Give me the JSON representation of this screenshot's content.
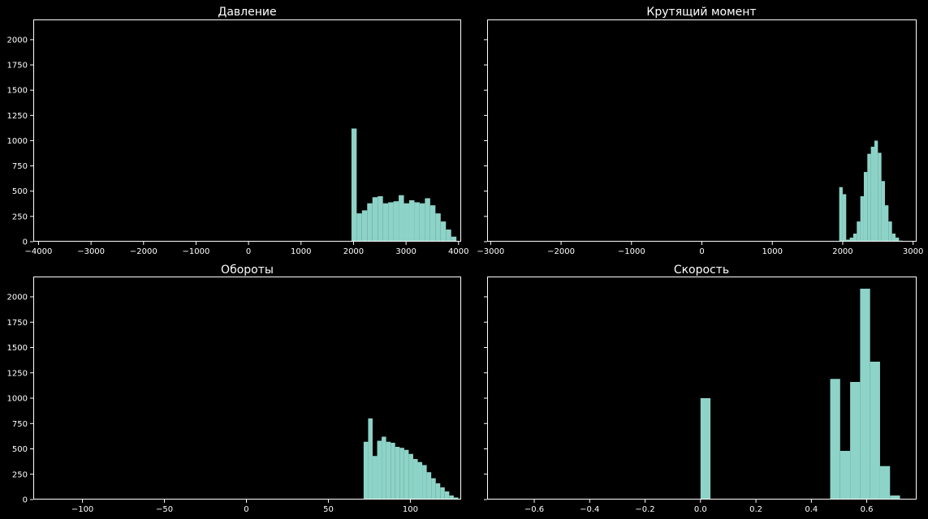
{
  "chart_data": [
    {
      "type": "bar",
      "title": "Давление",
      "xlim": [
        -4100,
        4050
      ],
      "ylim": [
        0,
        2200
      ],
      "x_ticks": [
        -4000,
        -3000,
        -2000,
        -1000,
        0,
        1000,
        2000,
        3000,
        4000
      ],
      "y_ticks": [
        0,
        250,
        500,
        750,
        1000,
        1250,
        1500,
        1750,
        2000
      ],
      "show_y_labels": true,
      "color": "#8dd3c7",
      "bins_x0": 1960,
      "bin_width": 100,
      "values": [
        1120,
        280,
        310,
        380,
        440,
        450,
        380,
        390,
        400,
        460,
        380,
        410,
        390,
        380,
        430,
        360,
        280,
        200,
        120,
        50
      ]
    },
    {
      "type": "bar",
      "title": "Крутящий момент",
      "xlim": [
        -3050,
        3050
      ],
      "ylim": [
        0,
        2200
      ],
      "x_ticks": [
        -3000,
        -2000,
        -1000,
        0,
        1000,
        2000,
        3000
      ],
      "y_ticks": [
        0,
        250,
        500,
        750,
        1000,
        1250,
        1500,
        1750,
        2000
      ],
      "show_y_labels": false,
      "color": "#8dd3c7",
      "bins_x0": 1950,
      "bin_width": 50,
      "values": [
        540,
        470,
        20,
        40,
        80,
        200,
        450,
        690,
        870,
        940,
        1000,
        880,
        600,
        360,
        200,
        80,
        40,
        10
      ]
    },
    {
      "type": "bar",
      "title": "Обороты",
      "xlim": [
        -130,
        131
      ],
      "ylim": [
        0,
        2200
      ],
      "x_ticks": [
        -100,
        -50,
        0,
        50,
        100
      ],
      "y_ticks": [
        0,
        250,
        500,
        750,
        1000,
        1250,
        1500,
        1750,
        2000
      ],
      "show_y_labels": true,
      "color": "#8dd3c7",
      "bins_x0": 71.5,
      "bin_width": 2.75,
      "values": [
        570,
        800,
        430,
        580,
        620,
        570,
        560,
        520,
        510,
        490,
        450,
        400,
        370,
        340,
        270,
        210,
        160,
        120,
        80,
        40,
        20
      ]
    },
    {
      "type": "bar",
      "title": "Скорость",
      "xlim": [
        -0.77,
        0.78
      ],
      "ylim": [
        0,
        2200
      ],
      "x_ticks": [
        -0.6,
        -0.4,
        -0.2,
        0.0,
        0.2,
        0.4,
        0.6
      ],
      "x_tick_labels": [
        "−0.6",
        "−0.4",
        "−0.2",
        "0.0",
        "0.2",
        "0.4",
        "0.6"
      ],
      "y_ticks": [
        0,
        250,
        500,
        750,
        1000,
        1250,
        1500,
        1750,
        2000
      ],
      "show_y_labels": false,
      "color": "#8dd3c7",
      "bins_x0": 0,
      "bin_width": 0.036,
      "values": [
        1000,
        0,
        0,
        0,
        0,
        0,
        0,
        0,
        0,
        0,
        0,
        0,
        0,
        1190,
        480,
        1160,
        2080,
        1360,
        330,
        40
      ]
    }
  ]
}
